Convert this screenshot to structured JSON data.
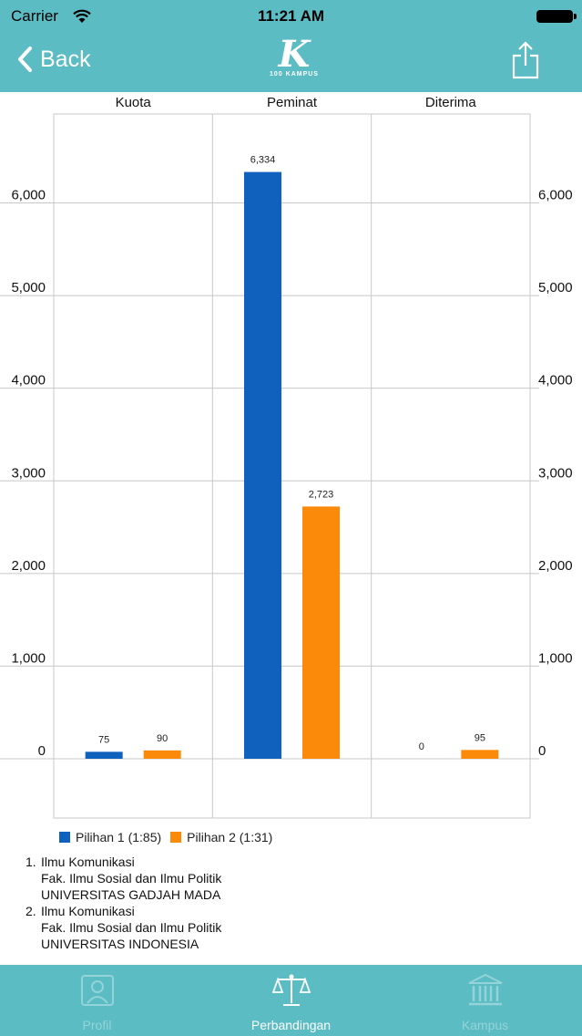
{
  "status_bar": {
    "carrier": "Carrier",
    "time": "11:21 AM"
  },
  "nav": {
    "back_label": "Back",
    "logo_letter": "K",
    "logo_sub": "100 KAMPUS"
  },
  "chart_data": {
    "type": "bar",
    "categories": [
      "Kuota",
      "Peminat",
      "Diterima"
    ],
    "series": [
      {
        "name": "Pilihan 1 (1:85)",
        "values": [
          75,
          6334,
          0
        ],
        "labels": [
          "75",
          "6,334",
          "0"
        ],
        "color": "#1060bd"
      },
      {
        "name": "Pilihan 2 (1:31)",
        "values": [
          90,
          2723,
          95
        ],
        "labels": [
          "90",
          "2,723",
          "95"
        ],
        "color": "#fb8a0a"
      }
    ],
    "y_ticks": [
      0,
      1000,
      2000,
      3000,
      4000,
      5000,
      6000
    ],
    "y_tick_labels": [
      "0",
      "1,000",
      "2,000",
      "3,000",
      "4,000",
      "5,000",
      "6,000"
    ],
    "ylim": [
      -640,
      6960
    ],
    "grid": true,
    "legend_position": "bottom-left",
    "axis_labels_both_sides": true
  },
  "notes": [
    {
      "num": "1.",
      "lines": [
        "Ilmu Komunikasi",
        "Fak. Ilmu Sosial dan Ilmu Politik",
        "UNIVERSITAS GADJAH MADA"
      ]
    },
    {
      "num": "2.",
      "lines": [
        "Ilmu Komunikasi",
        "Fak. Ilmu Sosial dan Ilmu Politik",
        "UNIVERSITAS INDONESIA"
      ]
    }
  ],
  "tabs": [
    {
      "label": "Profil",
      "icon": "profile-icon"
    },
    {
      "label": "Perbandingan",
      "icon": "scale-icon"
    },
    {
      "label": "Kampus",
      "icon": "campus-icon"
    }
  ]
}
